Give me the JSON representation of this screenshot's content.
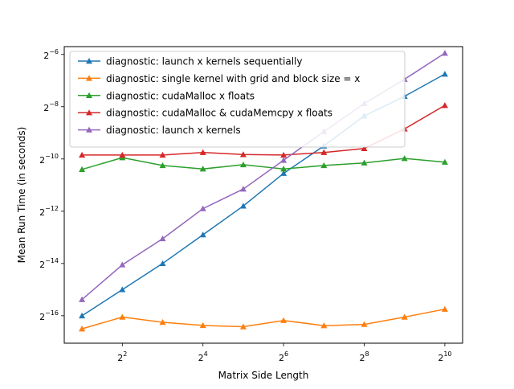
{
  "chart_data": {
    "type": "line",
    "xlabel": "Matrix Side Length",
    "ylabel": "Mean Run Time (in seconds)",
    "x_scale": "log2",
    "y_scale": "log2",
    "xlim_log2": [
      0.56,
      10.44
    ],
    "ylim_log2": [
      -17.05,
      -5.7
    ],
    "grid": false,
    "legend_position": "upper-left",
    "x_ticks": [
      {
        "exp": 2,
        "base": "2",
        "sup": "2"
      },
      {
        "exp": 4,
        "base": "2",
        "sup": "4"
      },
      {
        "exp": 6,
        "base": "2",
        "sup": "6"
      },
      {
        "exp": 8,
        "base": "2",
        "sup": "8"
      },
      {
        "exp": 10,
        "base": "2",
        "sup": "10"
      }
    ],
    "y_ticks": [
      {
        "exp": -16,
        "base": "2",
        "sup": "−16"
      },
      {
        "exp": -14,
        "base": "2",
        "sup": "−14"
      },
      {
        "exp": -12,
        "base": "2",
        "sup": "−12"
      },
      {
        "exp": -10,
        "base": "2",
        "sup": "−10"
      },
      {
        "exp": -8,
        "base": "2",
        "sup": "−8"
      },
      {
        "exp": -6,
        "base": "2",
        "sup": "−6"
      }
    ],
    "x_log2": [
      1,
      2,
      3,
      4,
      5,
      6,
      7,
      8,
      9,
      10
    ],
    "series": [
      {
        "name": "diagnostic: launch x kernels sequentially",
        "color": "#1f77b4",
        "y_log2": [
          -16.0,
          -15.0,
          -14.0,
          -12.9,
          -11.8,
          -10.55,
          -9.5,
          -8.35,
          -7.6,
          -6.75
        ]
      },
      {
        "name": "diagnostic: single kernel with grid and block size = x",
        "color": "#ff7f0e",
        "y_log2": [
          -16.5,
          -16.05,
          -16.25,
          -16.37,
          -16.42,
          -16.18,
          -16.38,
          -16.33,
          -16.05,
          -15.75
        ]
      },
      {
        "name": "diagnostic: cudaMalloc x floats",
        "color": "#2ca02c",
        "y_log2": [
          -10.4,
          -9.95,
          -10.25,
          -10.38,
          -10.22,
          -10.38,
          -10.25,
          -10.15,
          -9.98,
          -10.12
        ]
      },
      {
        "name": "diagnostic: cudaMalloc & cudaMemcpy x floats",
        "color": "#d62728",
        "y_log2": [
          -9.85,
          -9.85,
          -9.85,
          -9.75,
          -9.83,
          -9.85,
          -9.75,
          -9.6,
          -8.85,
          -7.95
        ]
      },
      {
        "name": "diagnostic: launch x kernels",
        "color": "#9467bd",
        "y_log2": [
          -15.38,
          -14.05,
          -13.05,
          -11.9,
          -11.15,
          -10.05,
          -8.95,
          -7.88,
          -6.95,
          -5.95
        ]
      }
    ]
  }
}
